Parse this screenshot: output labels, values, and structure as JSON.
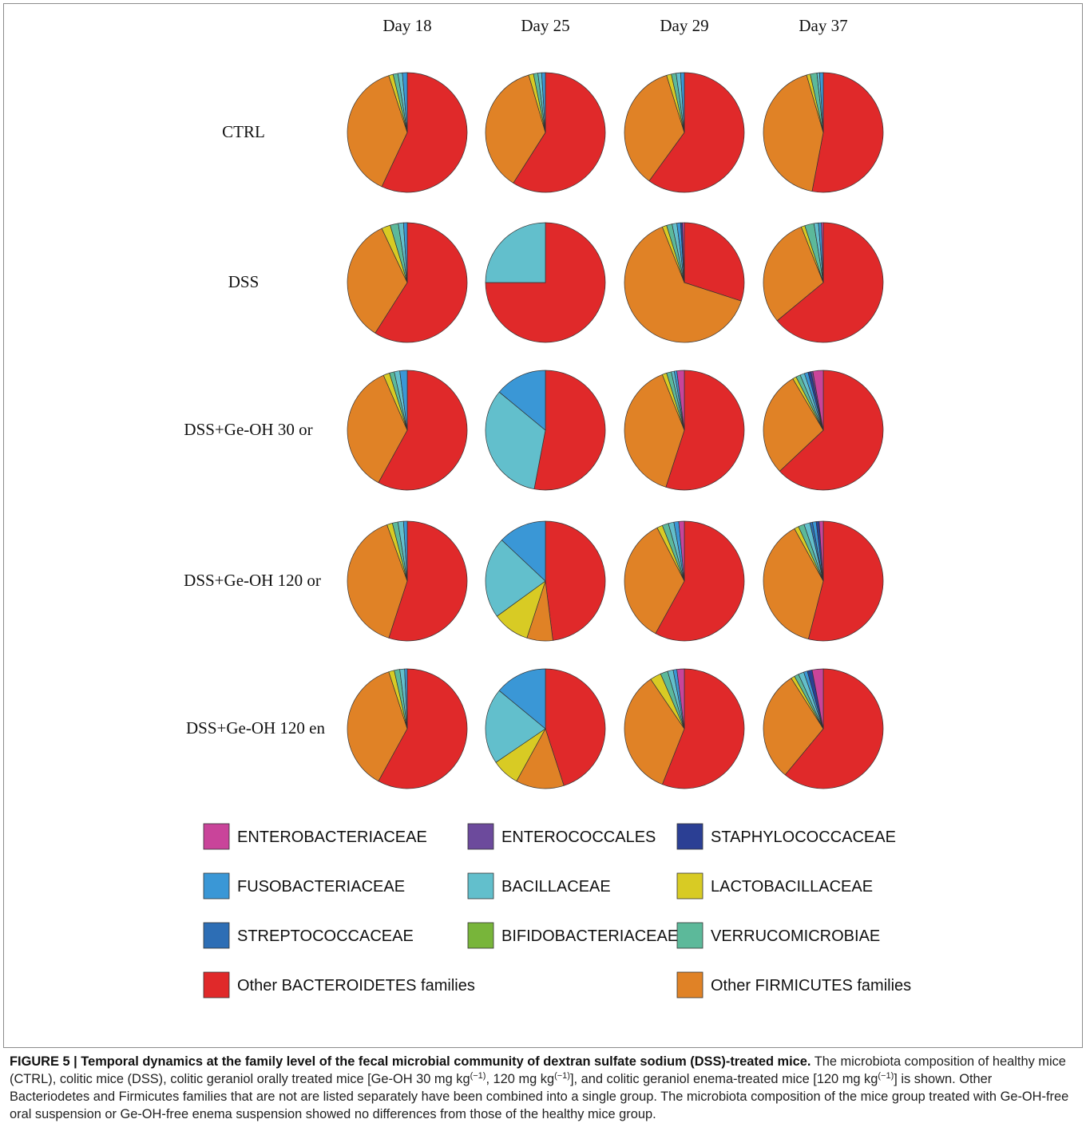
{
  "chart_data": {
    "type": "pie",
    "columns": [
      "Day 18",
      "Day 25",
      "Day 29",
      "Day 37"
    ],
    "rows": [
      "CTRL",
      "DSS",
      "DSS+Ge-OH 30 or",
      "DSS+Ge-OH 120 or",
      "DSS+Ge-OH 120 en"
    ],
    "legend": [
      {
        "key": "enterobacteriaceae",
        "label": "ENTEROBACTERIACEAE",
        "color": "#c9449a"
      },
      {
        "key": "enterococcales",
        "label": "ENTEROCOCCALES",
        "color": "#6c4a9c"
      },
      {
        "key": "staphylococcaceae",
        "label": "STAPHYLOCOCCACEAE",
        "color": "#2b3f94"
      },
      {
        "key": "fusobacteriaceae",
        "label": "FUSOBACTERIACEAE",
        "color": "#3a97d6"
      },
      {
        "key": "bacillaceae",
        "label": "BACILLACEAE",
        "color": "#62bfcc"
      },
      {
        "key": "lactobacillaceae",
        "label": "LACTOBACILLACEAE",
        "color": "#d8cb24"
      },
      {
        "key": "streptococcaceae",
        "label": "STREPTOCOCCACEAE",
        "color": "#2d6eb5"
      },
      {
        "key": "bifidobacteriaceae",
        "label": "BIFIDOBACTERIACEAE",
        "color": "#78b53a"
      },
      {
        "key": "verrucomicrobiae",
        "label": "VERRUCOMICROBIAE",
        "color": "#5cb99a"
      },
      {
        "key": "other_bacteroidetes",
        "label": "Other BACTEROIDETES families",
        "color": "#e0292a"
      },
      {
        "key": "other_firmicutes",
        "label": "Other FIRMICUTES families",
        "color": "#e08226"
      }
    ],
    "pie_order": [
      "other_bacteroidetes",
      "other_firmicutes",
      "lactobacillaceae",
      "bifidobacteriaceae",
      "verrucomicrobiae",
      "bacillaceae",
      "streptococcaceae",
      "fusobacteriaceae",
      "staphylococcaceae",
      "enterococcales",
      "enterobacteriaceae"
    ],
    "pies": [
      [
        {
          "other_bacteroidetes": 57,
          "other_firmicutes": 38,
          "lactobacillaceae": 1.2,
          "verrucomicrobiae": 1.3,
          "bacillaceae": 1.2,
          "fusobacteriaceae": 1.3
        },
        {
          "other_bacteroidetes": 59,
          "other_firmicutes": 36.5,
          "lactobacillaceae": 1.3,
          "verrucomicrobiae": 1.2,
          "bacillaceae": 1,
          "fusobacteriaceae": 1
        },
        {
          "other_bacteroidetes": 60,
          "other_firmicutes": 35.2,
          "lactobacillaceae": 1.3,
          "verrucomicrobiae": 1.3,
          "bacillaceae": 1.2,
          "fusobacteriaceae": 1
        },
        {
          "other_bacteroidetes": 53,
          "other_firmicutes": 42.5,
          "lactobacillaceae": 1,
          "verrucomicrobiae": 1.8,
          "bacillaceae": 0.7,
          "fusobacteriaceae": 1
        }
      ],
      [
        {
          "other_bacteroidetes": 59,
          "other_firmicutes": 34,
          "lactobacillaceae": 2.4,
          "verrucomicrobiae": 2.2,
          "bacillaceae": 1.4,
          "fusobacteriaceae": 1
        },
        {
          "other_bacteroidetes": 75,
          "bacillaceae": 25
        },
        {
          "other_bacteroidetes": 30,
          "other_firmicutes": 64,
          "lactobacillaceae": 1.2,
          "verrucomicrobiae": 1.5,
          "bacillaceae": 1.3,
          "fusobacteriaceae": 1,
          "staphylococcaceae": 0.5,
          "enterobacteriaceae": 0.5
        },
        {
          "other_bacteroidetes": 64,
          "other_firmicutes": 30,
          "lactobacillaceae": 1,
          "verrucomicrobiae": 2.5,
          "bacillaceae": 1.2,
          "fusobacteriaceae": 0.8,
          "enterobacteriaceae": 0.5
        }
      ],
      [
        {
          "other_bacteroidetes": 58,
          "other_firmicutes": 35.5,
          "lactobacillaceae": 1.7,
          "verrucomicrobiae": 1.3,
          "bacillaceae": 1.5,
          "fusobacteriaceae": 2
        },
        {
          "other_bacteroidetes": 53,
          "bacillaceae": 33,
          "fusobacteriaceae": 14
        },
        {
          "other_bacteroidetes": 55,
          "other_firmicutes": 39,
          "lactobacillaceae": 1.2,
          "verrucomicrobiae": 1.3,
          "bacillaceae": 0.8,
          "fusobacteriaceae": 0.7,
          "enterobacteriaceae": 2
        },
        {
          "other_bacteroidetes": 63,
          "other_firmicutes": 28.5,
          "lactobacillaceae": 1,
          "verrucomicrobiae": 1.2,
          "bacillaceae": 1.2,
          "fusobacteriaceae": 1,
          "staphylococcaceae": 0.8,
          "enterococcales": 0.5,
          "enterobacteriaceae": 2.8
        }
      ],
      [
        {
          "other_bacteroidetes": 55,
          "other_firmicutes": 39.5,
          "lactobacillaceae": 1.5,
          "verrucomicrobiae": 1.5,
          "bacillaceae": 1.5,
          "fusobacteriaceae": 1
        },
        {
          "other_bacteroidetes": 48,
          "other_firmicutes": 7,
          "lactobacillaceae": 10,
          "bacillaceae": 22,
          "fusobacteriaceae": 13
        },
        {
          "other_bacteroidetes": 58,
          "other_firmicutes": 34.5,
          "lactobacillaceae": 1.5,
          "verrucomicrobiae": 1.7,
          "bacillaceae": 1.5,
          "fusobacteriaceae": 1.3,
          "enterobacteriaceae": 1.5
        },
        {
          "other_bacteroidetes": 54,
          "other_firmicutes": 38,
          "lactobacillaceae": 1.2,
          "verrucomicrobiae": 1.6,
          "bacillaceae": 1.6,
          "streptococcaceae": 0.7,
          "fusobacteriaceae": 1,
          "staphylococcaceae": 0.8,
          "enterobacteriaceae": 1.1
        }
      ],
      [
        {
          "other_bacteroidetes": 58,
          "other_firmicutes": 37,
          "lactobacillaceae": 1.5,
          "verrucomicrobiae": 1.5,
          "bacillaceae": 1.3,
          "fusobacteriaceae": 0.7
        },
        {
          "other_bacteroidetes": 45,
          "other_firmicutes": 13,
          "lactobacillaceae": 7.5,
          "bacillaceae": 20.5,
          "fusobacteriaceae": 14
        },
        {
          "other_bacteroidetes": 56,
          "other_firmicutes": 34.5,
          "lactobacillaceae": 3,
          "verrucomicrobiae": 2,
          "bacillaceae": 1.5,
          "fusobacteriaceae": 1,
          "enterobacteriaceae": 2
        },
        {
          "other_bacteroidetes": 61,
          "other_firmicutes": 30,
          "lactobacillaceae": 1,
          "verrucomicrobiae": 1.2,
          "bacillaceae": 1.5,
          "fusobacteriaceae": 1,
          "staphylococcaceae": 1.3,
          "enterobacteriaceae": 3
        }
      ]
    ]
  },
  "caption": {
    "heading": "FIGURE 5 | Temporal dynamics at the family level of the fecal microbial community of dextran sulfate sodium (DSS)-treated mice.",
    "t1": " The microbiota composition of healthy mice (CTRL), colitic mice (DSS), colitic geraniol orally treated mice [Ge-OH 30 mg kg",
    "sup": "(−1)",
    "t2": ", 120 mg kg",
    "t3": "], and colitic geraniol enema-treated mice [120 mg kg",
    "t4": "] is shown. Other Bacteriodetes and Firmicutes families that are not are listed separately have been combined into a single group. The microbiota composition of the mice group treated with Ge-OH-free oral suspension or Ge-OH-free enema suspension showed no differences from those of the healthy mice group."
  }
}
